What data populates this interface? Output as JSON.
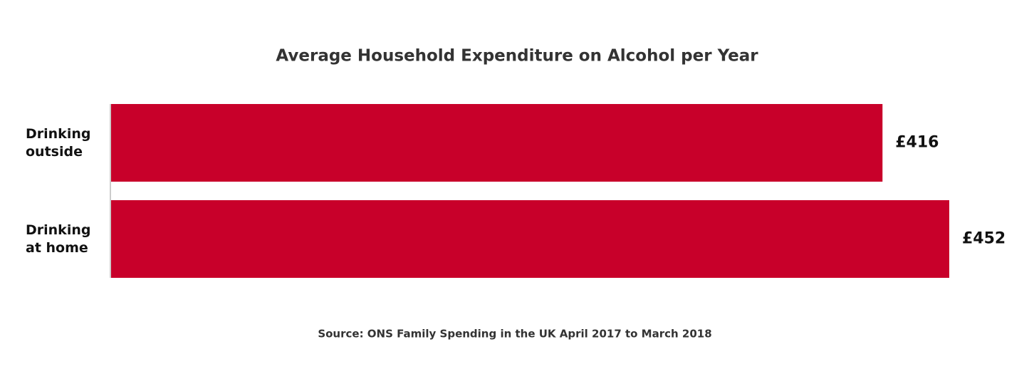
{
  "chart_data": {
    "type": "bar",
    "orientation": "horizontal",
    "title": "Average Household Expenditure on Alcohol per Year",
    "categories": [
      "Drinking outside",
      "Drinking at home"
    ],
    "values": [
      416,
      452
    ],
    "value_labels": [
      "£416",
      "£452"
    ],
    "color": "#c8002a",
    "source": "Source: ONS Family Spending in the UK April 2017 to March 2018"
  }
}
